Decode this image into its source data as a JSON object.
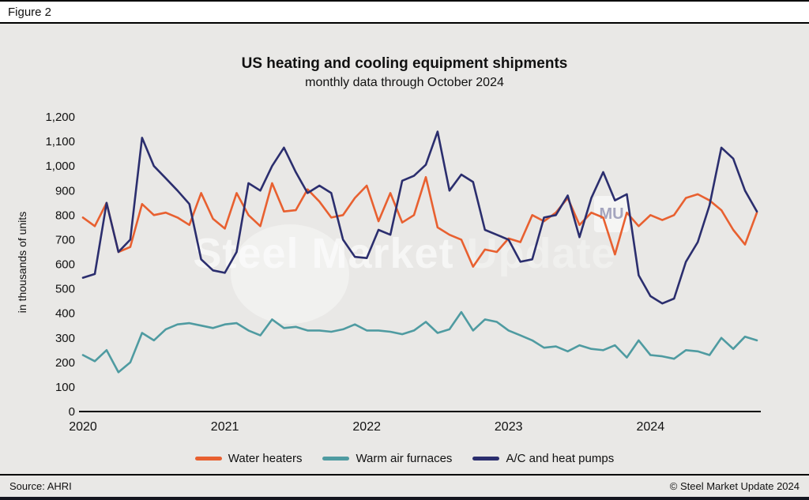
{
  "figure_label": "Figure 2",
  "watermark": {
    "text_primary": "Steel Market",
    "text_secondary": "Update",
    "badge": "MU"
  },
  "footer": {
    "source": "Source: AHRI",
    "copyright": "© Steel Market Update 2024"
  },
  "colors": {
    "background": "#E9E8E6",
    "water_heaters": "#E86030",
    "warm_air_furnaces": "#4F9BA1",
    "ac_heat_pumps": "#2B2E6E",
    "axis": "#000000"
  },
  "chart_data": {
    "type": "line",
    "title": "US heating and cooling equipment shipments",
    "subtitle": "monthly data through October 2024",
    "ylabel": "in thousands of units",
    "xlabel": "",
    "ylim": [
      0,
      1200
    ],
    "y_tick_step": 100,
    "y_tick_labels": [
      "0",
      "100",
      "200",
      "300",
      "400",
      "500",
      "600",
      "700",
      "800",
      "900",
      "1,000",
      "1,100",
      "1,200"
    ],
    "grid": false,
    "legend_position": "bottom",
    "x_year_labels": [
      {
        "label": "2020",
        "month_index": 0
      },
      {
        "label": "2021",
        "month_index": 12
      },
      {
        "label": "2022",
        "month_index": 24
      },
      {
        "label": "2023",
        "month_index": 36
      },
      {
        "label": "2024",
        "month_index": 48
      }
    ],
    "x": [
      "2020-01",
      "2020-02",
      "2020-03",
      "2020-04",
      "2020-05",
      "2020-06",
      "2020-07",
      "2020-08",
      "2020-09",
      "2020-10",
      "2020-11",
      "2020-12",
      "2021-01",
      "2021-02",
      "2021-03",
      "2021-04",
      "2021-05",
      "2021-06",
      "2021-07",
      "2021-08",
      "2021-09",
      "2021-10",
      "2021-11",
      "2021-12",
      "2022-01",
      "2022-02",
      "2022-03",
      "2022-04",
      "2022-05",
      "2022-06",
      "2022-07",
      "2022-08",
      "2022-09",
      "2022-10",
      "2022-11",
      "2022-12",
      "2023-01",
      "2023-02",
      "2023-03",
      "2023-04",
      "2023-05",
      "2023-06",
      "2023-07",
      "2023-08",
      "2023-09",
      "2023-10",
      "2023-11",
      "2023-12",
      "2024-01",
      "2024-02",
      "2024-03",
      "2024-04",
      "2024-05",
      "2024-06",
      "2024-07",
      "2024-08",
      "2024-09",
      "2024-10"
    ],
    "series": [
      {
        "name": "Water heaters",
        "color": "#E86030",
        "values": [
          790,
          755,
          850,
          650,
          670,
          845,
          800,
          810,
          790,
          760,
          890,
          785,
          745,
          890,
          800,
          755,
          930,
          815,
          820,
          905,
          855,
          790,
          800,
          870,
          920,
          775,
          890,
          770,
          800,
          955,
          750,
          720,
          700,
          590,
          660,
          650,
          705,
          690,
          800,
          775,
          810,
          870,
          760,
          810,
          790,
          640,
          810,
          755,
          800,
          780,
          800,
          870,
          885,
          860,
          820,
          740,
          680,
          810
        ]
      },
      {
        "name": "Warm air furnaces",
        "color": "#4F9BA1",
        "values": [
          230,
          205,
          250,
          160,
          200,
          320,
          290,
          335,
          355,
          360,
          350,
          340,
          355,
          360,
          330,
          310,
          375,
          340,
          345,
          330,
          330,
          325,
          335,
          355,
          330,
          330,
          325,
          315,
          330,
          365,
          320,
          335,
          405,
          330,
          375,
          365,
          330,
          310,
          290,
          260,
          265,
          245,
          270,
          255,
          250,
          270,
          220,
          290,
          230,
          225,
          215,
          250,
          245,
          230,
          300,
          255,
          305,
          290
        ]
      },
      {
        "name": "A/C and heat pumps",
        "color": "#2B2E6E",
        "values": [
          545,
          560,
          850,
          650,
          700,
          1115,
          1000,
          950,
          900,
          845,
          620,
          575,
          565,
          650,
          930,
          900,
          1000,
          1075,
          975,
          890,
          920,
          890,
          700,
          630,
          625,
          740,
          720,
          940,
          960,
          1005,
          1140,
          900,
          965,
          935,
          740,
          720,
          700,
          610,
          620,
          790,
          800,
          880,
          710,
          870,
          975,
          860,
          885,
          555,
          470,
          440,
          460,
          610,
          690,
          840,
          1075,
          1030,
          900,
          815
        ]
      }
    ]
  }
}
